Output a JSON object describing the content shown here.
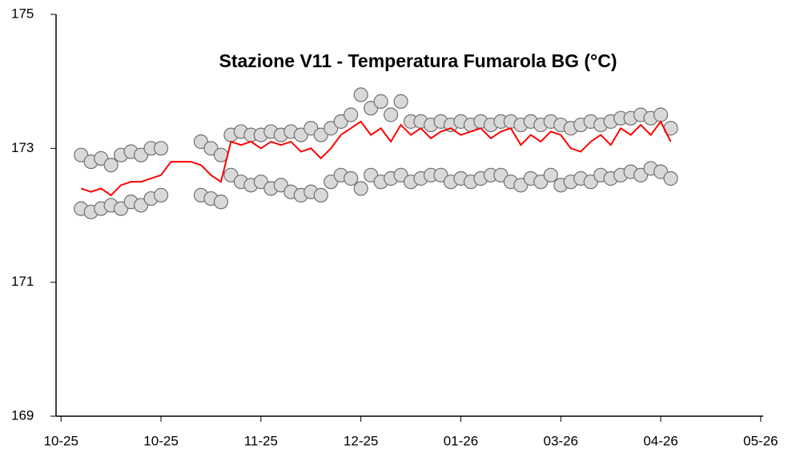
{
  "chart_data": {
    "type": "scatter",
    "title": "Stazione V11 - Temperatura Fumarola BG (°C)",
    "xlim": [
      -2,
      281
    ],
    "xticks": [
      {
        "value": 0,
        "label": "10-25"
      },
      {
        "value": 40,
        "label": "10-25"
      },
      {
        "value": 80,
        "label": "11-25"
      },
      {
        "value": 120,
        "label": "12-25"
      },
      {
        "value": 160,
        "label": "01-26"
      },
      {
        "value": 200,
        "label": "03-26"
      },
      {
        "value": 240,
        "label": "04-26"
      },
      {
        "value": 280,
        "label": "05-26"
      }
    ],
    "ylim": [
      169,
      175
    ],
    "yticks": [
      169,
      171,
      173,
      175
    ],
    "series": [
      {
        "type": "scatter",
        "color": "#d9d9d9",
        "x": [
          8,
          12,
          16,
          20,
          24,
          28,
          32,
          36,
          40,
          56,
          60,
          64,
          68,
          72,
          76,
          80,
          84,
          88,
          92,
          96,
          100,
          104,
          108,
          112,
          116,
          120,
          124,
          128,
          132,
          136,
          140,
          144,
          148,
          152,
          156,
          160,
          164,
          168,
          172,
          176,
          180,
          184,
          188,
          192,
          196,
          200,
          204,
          208,
          212,
          216,
          220,
          224,
          228,
          232,
          236,
          240,
          244,
          8,
          12,
          16,
          20,
          24,
          28,
          32,
          36,
          40,
          56,
          60,
          64,
          68,
          72,
          76,
          80,
          84,
          88,
          92,
          96,
          100,
          104,
          108,
          112,
          116,
          120,
          124,
          128,
          132,
          136,
          140,
          144,
          148,
          152,
          156,
          160,
          164,
          168,
          172,
          176,
          180,
          184,
          188,
          192,
          196,
          200,
          204,
          208,
          212,
          216,
          220,
          224,
          228,
          232,
          236,
          240,
          244
        ],
        "values": [
          172.9,
          172.8,
          172.85,
          172.75,
          172.9,
          172.95,
          172.9,
          173.0,
          173.0,
          173.1,
          173.0,
          172.9,
          173.2,
          173.25,
          173.2,
          173.2,
          173.25,
          173.2,
          173.25,
          173.2,
          173.3,
          173.2,
          173.3,
          173.4,
          173.5,
          173.8,
          173.6,
          173.7,
          173.5,
          173.7,
          173.4,
          173.4,
          173.35,
          173.4,
          173.35,
          173.4,
          173.35,
          173.4,
          173.35,
          173.4,
          173.4,
          173.35,
          173.4,
          173.35,
          173.4,
          173.35,
          173.3,
          173.35,
          173.4,
          173.35,
          173.4,
          173.45,
          173.45,
          173.5,
          173.45,
          173.5,
          173.3,
          172.1,
          172.05,
          172.1,
          172.15,
          172.1,
          172.2,
          172.15,
          172.25,
          172.3,
          172.3,
          172.25,
          172.2,
          172.6,
          172.5,
          172.45,
          172.5,
          172.4,
          172.45,
          172.35,
          172.3,
          172.35,
          172.3,
          172.5,
          172.6,
          172.55,
          172.4,
          172.6,
          172.5,
          172.55,
          172.6,
          172.5,
          172.55,
          172.6,
          172.6,
          172.5,
          172.55,
          172.5,
          172.55,
          172.6,
          172.6,
          172.5,
          172.45,
          172.55,
          172.5,
          172.6,
          172.45,
          172.5,
          172.55,
          172.5,
          172.6,
          172.55,
          172.6,
          172.65,
          172.6,
          172.7,
          172.65,
          172.55
        ]
      },
      {
        "type": "line",
        "color": "#ff0000",
        "x": [
          8,
          12,
          16,
          20,
          24,
          28,
          32,
          36,
          40,
          44,
          48,
          52,
          56,
          60,
          64,
          68,
          72,
          76,
          80,
          84,
          88,
          92,
          96,
          100,
          104,
          108,
          112,
          116,
          120,
          124,
          128,
          132,
          136,
          140,
          144,
          148,
          152,
          156,
          160,
          164,
          168,
          172,
          176,
          180,
          184,
          188,
          192,
          196,
          200,
          204,
          208,
          212,
          216,
          220,
          224,
          228,
          232,
          236,
          240,
          244
        ],
        "values": [
          172.4,
          172.35,
          172.4,
          172.3,
          172.45,
          172.5,
          172.5,
          172.55,
          172.6,
          172.8,
          172.8,
          172.8,
          172.75,
          172.6,
          172.5,
          173.1,
          173.05,
          173.1,
          173.0,
          173.1,
          173.05,
          173.1,
          172.95,
          173.0,
          172.85,
          173.0,
          173.2,
          173.3,
          173.4,
          173.2,
          173.3,
          173.1,
          173.35,
          173.2,
          173.3,
          173.15,
          173.25,
          173.3,
          173.2,
          173.25,
          173.3,
          173.15,
          173.25,
          173.3,
          173.05,
          173.2,
          173.1,
          173.25,
          173.2,
          173.0,
          172.95,
          173.1,
          173.2,
          173.05,
          173.3,
          173.2,
          173.35,
          173.2,
          173.4,
          173.1
        ]
      }
    ]
  }
}
